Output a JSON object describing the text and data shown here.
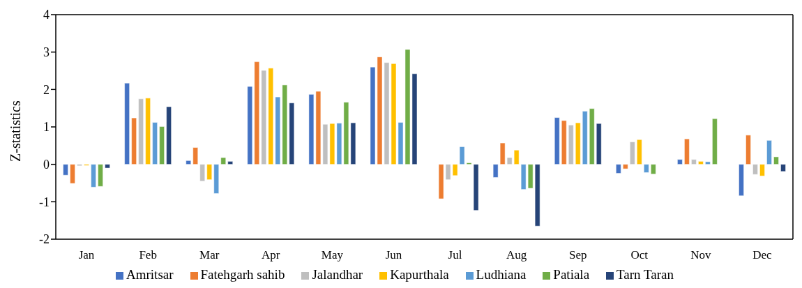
{
  "chart_data": {
    "type": "bar",
    "ylabel": "Z-statistics",
    "categories": [
      "Jan",
      "Feb",
      "Mar",
      "Apr",
      "May",
      "Jun",
      "Jul",
      "Aug",
      "Sep",
      "Oct",
      "Nov",
      "Dec"
    ],
    "series": [
      {
        "name": "Amritsar",
        "color": "#4472c4",
        "values": [
          -0.29,
          2.17,
          0.1,
          2.08,
          1.87,
          2.6,
          0,
          -0.35,
          1.25,
          -0.24,
          0.13,
          -0.84
        ]
      },
      {
        "name": "Fatehgarh sahib",
        "color": "#ed7d31",
        "values": [
          -0.51,
          1.24,
          0.45,
          2.74,
          1.95,
          2.87,
          -0.92,
          0.57,
          1.17,
          -0.12,
          0.68,
          0.78
        ]
      },
      {
        "name": "Jalandhar",
        "color": "#bfbfbf",
        "values": [
          -0.04,
          1.75,
          -0.45,
          2.51,
          1.07,
          2.72,
          -0.41,
          0.18,
          1.05,
          0.6,
          0.13,
          -0.27
        ]
      },
      {
        "name": "Kapurthala",
        "color": "#ffc000",
        "values": [
          -0.03,
          1.77,
          -0.41,
          2.57,
          1.09,
          2.69,
          -0.3,
          0.38,
          1.11,
          0.66,
          0.08,
          -0.31
        ]
      },
      {
        "name": "Ludhiana",
        "color": "#5b9bd5",
        "values": [
          -0.61,
          1.12,
          -0.78,
          1.8,
          1.1,
          1.12,
          0.47,
          -0.67,
          1.42,
          -0.22,
          0.07,
          0.64
        ]
      },
      {
        "name": "Patiala",
        "color": "#70ad47",
        "values": [
          -0.59,
          1.01,
          0.18,
          2.12,
          1.66,
          3.07,
          0.04,
          -0.64,
          1.49,
          -0.26,
          1.22,
          0.2
        ]
      },
      {
        "name": "Tarn Taran",
        "color": "#264478",
        "values": [
          -0.1,
          1.54,
          0.08,
          1.64,
          1.11,
          2.42,
          -1.23,
          -1.65,
          1.09,
          0,
          0,
          -0.19
        ]
      }
    ],
    "ylim": [
      -2,
      4
    ],
    "yticks": [
      -2,
      -1,
      0,
      1,
      2,
      3,
      4
    ],
    "grid": false,
    "legend": "bottom"
  }
}
